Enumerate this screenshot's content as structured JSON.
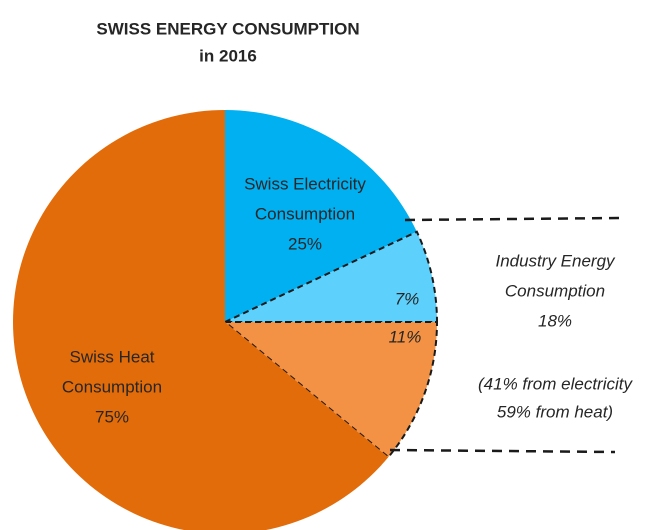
{
  "chart_data": {
    "type": "pie",
    "title": [
      "SWISS ENERGY CONSUMPTION",
      "in 2016"
    ],
    "values": [
      18,
      7,
      11,
      64
    ],
    "value_labels": [
      null,
      "7%",
      "11%",
      null
    ],
    "colors": [
      "#00b0f0",
      "#5dd0fb",
      "#f39245",
      "#e36c0a"
    ],
    "groups": [
      {
        "label": [
          "Swiss Electricity",
          "Consumption",
          "25%"
        ]
      },
      {
        "label": [
          "Swiss Heat",
          "Consumption",
          "75%"
        ]
      },
      {
        "label": [
          "Industry Energy",
          "Consumption",
          "18%"
        ],
        "note": [
          "(41% from electricity",
          "59% from heat)"
        ]
      }
    ]
  }
}
